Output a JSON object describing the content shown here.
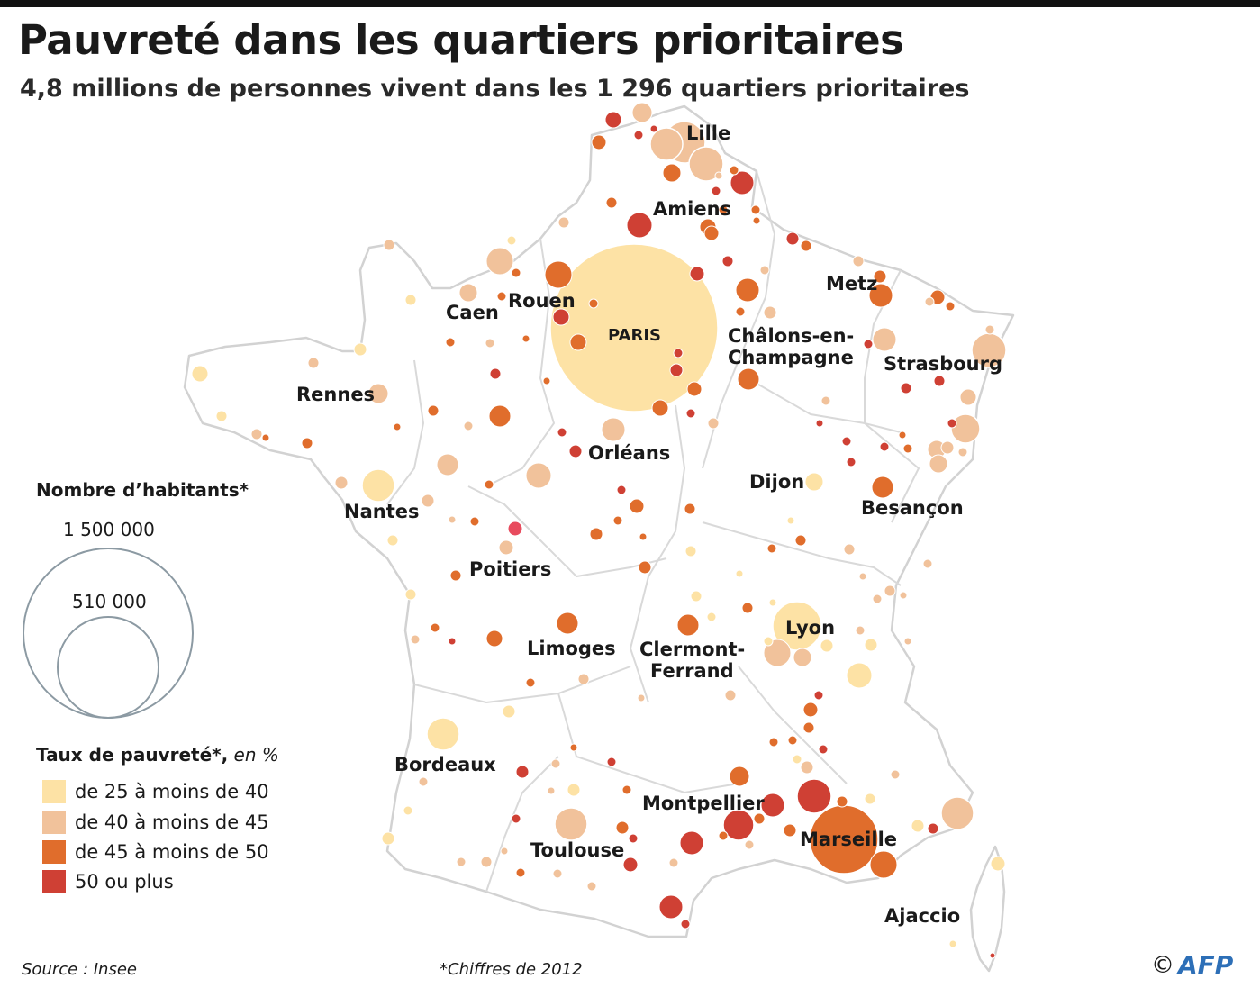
{
  "title": "Pauvreté dans les quartiers prioritaires",
  "subtitle": "4,8 millions de personnes vivent dans les 1 296 quartiers prioritaires",
  "colors": {
    "rate_25_40": "#fde2a5",
    "rate_40_45": "#f1c29b",
    "rate_45_50": "#e06d2c",
    "rate_50_plus": "#cf4034",
    "map_outline": "#d2d2d2",
    "legend_circle": "#8c9aa3",
    "afp_blue": "#2d6fb7"
  },
  "cities": [
    {
      "name": "Lille"
    },
    {
      "name": "Amiens"
    },
    {
      "name": "Rouen"
    },
    {
      "name": "Caen"
    },
    {
      "name": "PARIS"
    },
    {
      "name": "Metz"
    },
    {
      "name": "Châlons-en-"
    },
    {
      "name": "Champagne"
    },
    {
      "name": "Strasbourg"
    },
    {
      "name": "Rennes"
    },
    {
      "name": "Orléans"
    },
    {
      "name": "Dijon"
    },
    {
      "name": "Nantes"
    },
    {
      "name": "Besançon"
    },
    {
      "name": "Poitiers"
    },
    {
      "name": "Lyon"
    },
    {
      "name": "Limoges"
    },
    {
      "name": "Clermont-"
    },
    {
      "name": "Ferrand"
    },
    {
      "name": "Bordeaux"
    },
    {
      "name": "Montpellier"
    },
    {
      "name": "Marseille"
    },
    {
      "name": "Toulouse"
    },
    {
      "name": "Ajaccio"
    }
  ],
  "legend": {
    "size_title": "Nombre d’habitants*",
    "size_large": "1 500 000",
    "size_small": "510 000",
    "rate_title": "Taux de pauvreté*,",
    "rate_title_suffix": " en %",
    "rates": [
      {
        "label": "de 25 à moins de 40",
        "color": "#fde2a5"
      },
      {
        "label": "de 40 à moins de 45",
        "color": "#f1c29b"
      },
      {
        "label": "de 45 à moins de 50",
        "color": "#e06d2c"
      },
      {
        "label": "50 ou plus",
        "color": "#cf4034"
      }
    ]
  },
  "source": "Source : Insee",
  "footnote": "*Chiffres de 2012",
  "credit": {
    "symbol": "©",
    "agency": "AFP"
  }
}
